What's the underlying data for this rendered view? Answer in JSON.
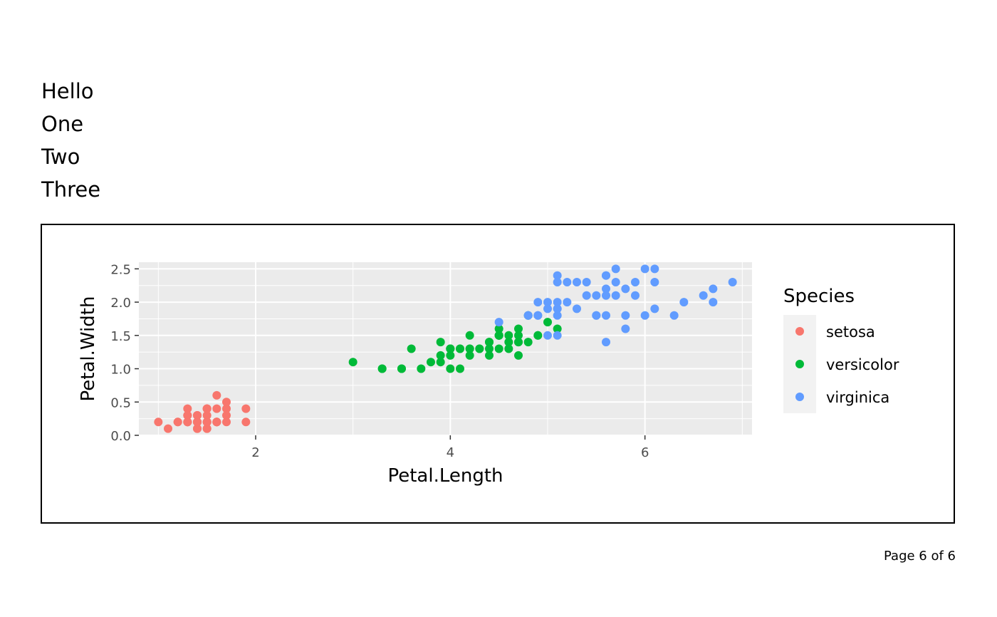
{
  "text_lines": [
    "Hello",
    "One",
    "Two",
    "Three"
  ],
  "footer": "Page 6 of 6",
  "chart_data": {
    "type": "scatter",
    "xlabel": "Petal.Length",
    "ylabel": "Petal.Width",
    "xlim": [
      0.8,
      7.1
    ],
    "ylim": [
      0,
      2.6
    ],
    "xticks": [
      2,
      4,
      6
    ],
    "yticks": [
      0.0,
      0.5,
      1.0,
      1.5,
      2.0,
      2.5
    ],
    "ytick_labels": [
      "0.0",
      "0.5",
      "1.0",
      "1.5",
      "2.0",
      "2.5"
    ],
    "grid": true,
    "panel_background": "#ebebeb",
    "legend": {
      "title": "Species",
      "position": "right"
    },
    "series": [
      {
        "name": "setosa",
        "color": "#F8766D",
        "points": [
          [
            1.4,
            0.2
          ],
          [
            1.4,
            0.2
          ],
          [
            1.3,
            0.2
          ],
          [
            1.5,
            0.2
          ],
          [
            1.4,
            0.2
          ],
          [
            1.7,
            0.4
          ],
          [
            1.4,
            0.3
          ],
          [
            1.5,
            0.2
          ],
          [
            1.4,
            0.2
          ],
          [
            1.5,
            0.1
          ],
          [
            1.5,
            0.2
          ],
          [
            1.6,
            0.2
          ],
          [
            1.4,
            0.1
          ],
          [
            1.1,
            0.1
          ],
          [
            1.2,
            0.2
          ],
          [
            1.5,
            0.4
          ],
          [
            1.3,
            0.4
          ],
          [
            1.4,
            0.3
          ],
          [
            1.7,
            0.3
          ],
          [
            1.5,
            0.3
          ],
          [
            1.7,
            0.2
          ],
          [
            1.5,
            0.4
          ],
          [
            1.0,
            0.2
          ],
          [
            1.7,
            0.5
          ],
          [
            1.9,
            0.2
          ],
          [
            1.6,
            0.2
          ],
          [
            1.6,
            0.4
          ],
          [
            1.5,
            0.2
          ],
          [
            1.4,
            0.2
          ],
          [
            1.6,
            0.2
          ],
          [
            1.6,
            0.2
          ],
          [
            1.5,
            0.4
          ],
          [
            1.5,
            0.1
          ],
          [
            1.4,
            0.2
          ],
          [
            1.5,
            0.2
          ],
          [
            1.2,
            0.2
          ],
          [
            1.3,
            0.2
          ],
          [
            1.4,
            0.1
          ],
          [
            1.3,
            0.2
          ],
          [
            1.5,
            0.2
          ],
          [
            1.3,
            0.3
          ],
          [
            1.3,
            0.3
          ],
          [
            1.3,
            0.2
          ],
          [
            1.6,
            0.6
          ],
          [
            1.9,
            0.4
          ],
          [
            1.4,
            0.3
          ],
          [
            1.6,
            0.2
          ],
          [
            1.4,
            0.2
          ],
          [
            1.5,
            0.2
          ],
          [
            1.4,
            0.2
          ]
        ]
      },
      {
        "name": "versicolor",
        "color": "#00BA38",
        "points": [
          [
            4.7,
            1.4
          ],
          [
            4.5,
            1.5
          ],
          [
            4.9,
            1.5
          ],
          [
            4.0,
            1.3
          ],
          [
            4.6,
            1.5
          ],
          [
            4.5,
            1.3
          ],
          [
            4.7,
            1.6
          ],
          [
            3.3,
            1.0
          ],
          [
            4.6,
            1.3
          ],
          [
            3.9,
            1.4
          ],
          [
            3.5,
            1.0
          ],
          [
            4.2,
            1.5
          ],
          [
            4.0,
            1.0
          ],
          [
            4.7,
            1.4
          ],
          [
            3.6,
            1.3
          ],
          [
            4.4,
            1.4
          ],
          [
            4.5,
            1.5
          ],
          [
            4.1,
            1.0
          ],
          [
            4.5,
            1.5
          ],
          [
            3.9,
            1.1
          ],
          [
            4.8,
            1.8
          ],
          [
            4.0,
            1.3
          ],
          [
            4.9,
            1.5
          ],
          [
            4.7,
            1.2
          ],
          [
            4.3,
            1.3
          ],
          [
            4.4,
            1.4
          ],
          [
            4.8,
            1.4
          ],
          [
            5.0,
            1.7
          ],
          [
            4.5,
            1.5
          ],
          [
            3.5,
            1.0
          ],
          [
            3.8,
            1.1
          ],
          [
            3.7,
            1.0
          ],
          [
            3.9,
            1.2
          ],
          [
            5.1,
            1.6
          ],
          [
            4.5,
            1.5
          ],
          [
            4.5,
            1.6
          ],
          [
            4.7,
            1.5
          ],
          [
            4.4,
            1.3
          ],
          [
            4.1,
            1.3
          ],
          [
            4.0,
            1.3
          ],
          [
            4.4,
            1.2
          ],
          [
            4.6,
            1.4
          ],
          [
            4.0,
            1.2
          ],
          [
            3.3,
            1.0
          ],
          [
            4.2,
            1.3
          ],
          [
            4.2,
            1.2
          ],
          [
            4.2,
            1.3
          ],
          [
            4.3,
            1.3
          ],
          [
            3.0,
            1.1
          ],
          [
            4.1,
            1.3
          ]
        ]
      },
      {
        "name": "virginica",
        "color": "#619CFF",
        "points": [
          [
            6.0,
            2.5
          ],
          [
            5.1,
            1.9
          ],
          [
            5.9,
            2.1
          ],
          [
            5.6,
            1.8
          ],
          [
            5.8,
            2.2
          ],
          [
            6.6,
            2.1
          ],
          [
            4.5,
            1.7
          ],
          [
            6.3,
            1.8
          ],
          [
            5.8,
            1.8
          ],
          [
            6.1,
            2.5
          ],
          [
            5.1,
            2.0
          ],
          [
            5.3,
            1.9
          ],
          [
            5.5,
            2.1
          ],
          [
            5.0,
            2.0
          ],
          [
            5.1,
            2.4
          ],
          [
            5.3,
            2.3
          ],
          [
            5.5,
            1.8
          ],
          [
            6.7,
            2.2
          ],
          [
            6.9,
            2.3
          ],
          [
            5.0,
            1.5
          ],
          [
            5.7,
            2.3
          ],
          [
            4.9,
            2.0
          ],
          [
            6.7,
            2.0
          ],
          [
            4.9,
            1.8
          ],
          [
            5.7,
            2.1
          ],
          [
            6.0,
            1.8
          ],
          [
            4.8,
            1.8
          ],
          [
            4.9,
            1.8
          ],
          [
            5.6,
            2.1
          ],
          [
            5.8,
            1.6
          ],
          [
            6.1,
            1.9
          ],
          [
            6.4,
            2.0
          ],
          [
            5.6,
            2.2
          ],
          [
            5.1,
            1.5
          ],
          [
            5.6,
            1.4
          ],
          [
            6.1,
            2.3
          ],
          [
            5.6,
            2.4
          ],
          [
            5.5,
            1.8
          ],
          [
            4.8,
            1.8
          ],
          [
            5.4,
            2.1
          ],
          [
            5.6,
            2.4
          ],
          [
            5.1,
            2.3
          ],
          [
            5.1,
            1.9
          ],
          [
            5.9,
            2.3
          ],
          [
            5.7,
            2.5
          ],
          [
            5.2,
            2.3
          ],
          [
            5.0,
            1.9
          ],
          [
            5.2,
            2.0
          ],
          [
            5.4,
            2.3
          ],
          [
            5.1,
            1.8
          ]
        ]
      }
    ]
  }
}
